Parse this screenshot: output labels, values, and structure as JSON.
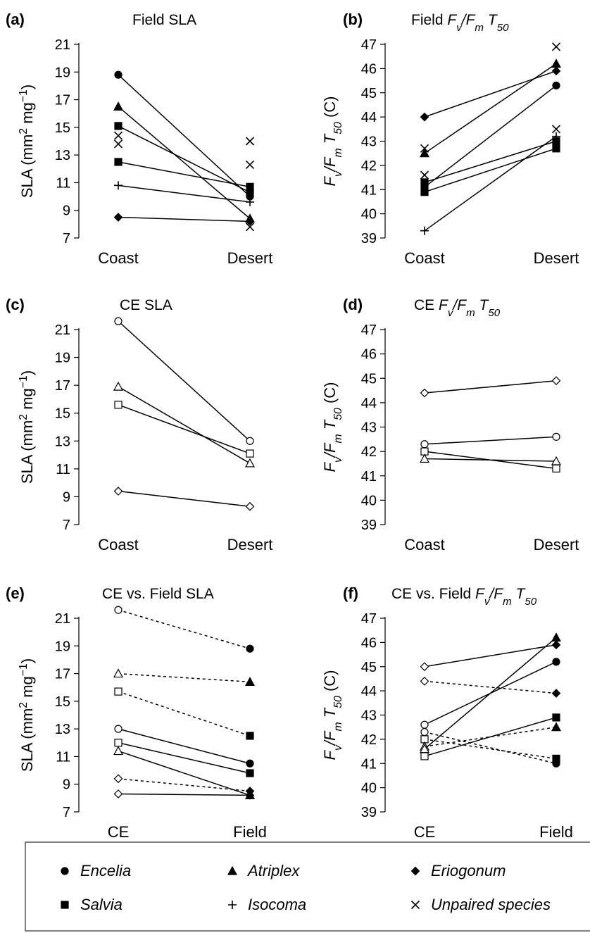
{
  "chart_data": [
    {
      "panel": "(a)",
      "title": "Field SLA",
      "type": "line",
      "categories": [
        "Coast",
        "Desert"
      ],
      "ylabel": "SLA (mm² mg⁻¹)",
      "ylim": [
        7,
        21
      ],
      "yticks": [
        7,
        9,
        11,
        13,
        15,
        17,
        19,
        21
      ],
      "series": [
        {
          "name": "Encelia",
          "marker": "circle",
          "filled": true,
          "style": "solid",
          "values": [
            18.8,
            10.0
          ]
        },
        {
          "name": "Atriplex",
          "marker": "triangle",
          "filled": true,
          "style": "solid",
          "values": [
            16.5,
            8.4
          ]
        },
        {
          "name": "Salvia",
          "marker": "square",
          "filled": true,
          "style": "solid",
          "values": [
            15.1,
            10.3
          ]
        },
        {
          "name": "Salvia",
          "marker": "square",
          "filled": true,
          "style": "solid",
          "values": [
            12.5,
            10.7
          ]
        },
        {
          "name": "Isocoma",
          "marker": "plus",
          "filled": true,
          "style": "solid",
          "values": [
            10.8,
            9.6
          ]
        },
        {
          "name": "Eriogonum",
          "marker": "diamond",
          "filled": true,
          "style": "solid",
          "values": [
            8.5,
            8.2
          ]
        },
        {
          "name": "Unpaired species",
          "marker": "x",
          "filled": true,
          "style": "none",
          "values": [
            14.4,
            14.0
          ]
        },
        {
          "name": "Unpaired species",
          "marker": "x",
          "filled": true,
          "style": "none",
          "values": [
            13.8,
            12.3
          ]
        },
        {
          "name": "Unpaired species",
          "marker": "x",
          "filled": true,
          "style": "none",
          "values": [
            null,
            7.8
          ]
        }
      ]
    },
    {
      "panel": "(b)",
      "title": "Field Fv/Fm T50",
      "type": "line",
      "categories": [
        "Coast",
        "Desert"
      ],
      "ylabel": "Fv/Fm T50 (C)",
      "ylim": [
        39,
        47
      ],
      "yticks": [
        39,
        40,
        41,
        42,
        43,
        44,
        45,
        46,
        47
      ],
      "series": [
        {
          "name": "Eriogonum",
          "marker": "diamond",
          "filled": true,
          "style": "solid",
          "values": [
            44.0,
            45.9
          ]
        },
        {
          "name": "Atriplex",
          "marker": "triangle",
          "filled": true,
          "style": "solid",
          "values": [
            42.5,
            46.2
          ]
        },
        {
          "name": "Encelia",
          "marker": "circle",
          "filled": true,
          "style": "solid",
          "values": [
            41.1,
            45.3
          ]
        },
        {
          "name": "Salvia",
          "marker": "square",
          "filled": true,
          "style": "solid",
          "values": [
            40.9,
            42.7
          ]
        },
        {
          "name": "Salvia",
          "marker": "square",
          "filled": true,
          "style": "solid",
          "values": [
            41.3,
            43.0
          ]
        },
        {
          "name": "Isocoma",
          "marker": "plus",
          "filled": true,
          "style": "solid",
          "values": [
            39.3,
            43.2
          ]
        },
        {
          "name": "Unpaired species",
          "marker": "x",
          "filled": true,
          "style": "none",
          "values": [
            42.7,
            46.9
          ]
        },
        {
          "name": "Unpaired species",
          "marker": "x",
          "filled": true,
          "style": "none",
          "values": [
            41.6,
            43.5
          ]
        }
      ]
    },
    {
      "panel": "(c)",
      "title": "CE SLA",
      "type": "line",
      "categories": [
        "Coast",
        "Desert"
      ],
      "ylabel": "SLA (mm² mg⁻¹)",
      "ylim": [
        7,
        21
      ],
      "yticks": [
        7,
        9,
        11,
        13,
        15,
        17,
        19,
        21
      ],
      "series": [
        {
          "name": "Encelia",
          "marker": "circle",
          "filled": false,
          "style": "solid",
          "values": [
            21.6,
            13.0
          ]
        },
        {
          "name": "Atriplex",
          "marker": "triangle",
          "filled": false,
          "style": "solid",
          "values": [
            16.9,
            11.4
          ]
        },
        {
          "name": "Salvia",
          "marker": "square",
          "filled": false,
          "style": "solid",
          "values": [
            15.6,
            12.1
          ]
        },
        {
          "name": "Eriogonum",
          "marker": "diamond",
          "filled": false,
          "style": "solid",
          "values": [
            9.4,
            8.3
          ]
        }
      ]
    },
    {
      "panel": "(d)",
      "title": "CE Fv/Fm T50",
      "type": "line",
      "categories": [
        "Coast",
        "Desert"
      ],
      "ylabel": "Fv/Fm T50 (C)",
      "ylim": [
        39,
        47
      ],
      "yticks": [
        39,
        40,
        41,
        42,
        43,
        44,
        45,
        46,
        47
      ],
      "series": [
        {
          "name": "Eriogonum",
          "marker": "diamond",
          "filled": false,
          "style": "solid",
          "values": [
            44.4,
            44.9
          ]
        },
        {
          "name": "Encelia",
          "marker": "circle",
          "filled": false,
          "style": "solid",
          "values": [
            42.3,
            42.6
          ]
        },
        {
          "name": "Salvia",
          "marker": "square",
          "filled": false,
          "style": "solid",
          "values": [
            42.0,
            41.3
          ]
        },
        {
          "name": "Atriplex",
          "marker": "triangle",
          "filled": false,
          "style": "solid",
          "values": [
            41.7,
            41.6
          ]
        }
      ]
    },
    {
      "panel": "(e)",
      "title": "CE vs. Field SLA",
      "type": "line",
      "categories": [
        "CE",
        "Field"
      ],
      "ylabel": "SLA (mm² mg⁻¹)",
      "ylim": [
        7,
        21
      ],
      "yticks": [
        7,
        9,
        11,
        13,
        15,
        17,
        19,
        21
      ],
      "series": [
        {
          "name": "Encelia",
          "marker": "circle",
          "style": "dashed",
          "values": [
            21.6,
            18.8
          ]
        },
        {
          "name": "Atriplex",
          "marker": "triangle",
          "style": "dashed",
          "values": [
            17.0,
            16.4
          ]
        },
        {
          "name": "Salvia",
          "marker": "square",
          "style": "dashed",
          "values": [
            15.7,
            12.5
          ]
        },
        {
          "name": "Encelia",
          "marker": "circle",
          "style": "solid",
          "values": [
            13.0,
            10.5
          ]
        },
        {
          "name": "Salvia",
          "marker": "square",
          "style": "solid",
          "values": [
            12.0,
            9.8
          ]
        },
        {
          "name": "Atriplex",
          "marker": "triangle",
          "style": "solid",
          "values": [
            11.4,
            8.2
          ]
        },
        {
          "name": "Eriogonum",
          "marker": "diamond",
          "style": "dashed",
          "values": [
            9.4,
            8.5
          ]
        },
        {
          "name": "Eriogonum",
          "marker": "diamond",
          "style": "solid",
          "values": [
            8.3,
            8.2
          ]
        }
      ]
    },
    {
      "panel": "(f)",
      "title": "CE vs. Field Fv/Fm T50",
      "type": "line",
      "categories": [
        "CE",
        "Field"
      ],
      "ylabel": "Fv/Fm T50 (C)",
      "ylim": [
        39,
        47
      ],
      "yticks": [
        39,
        40,
        41,
        42,
        43,
        44,
        45,
        46,
        47
      ],
      "series": [
        {
          "name": "Eriogonum",
          "marker": "diamond",
          "style": "solid",
          "values": [
            45.0,
            45.9
          ]
        },
        {
          "name": "Eriogonum",
          "marker": "diamond",
          "style": "dashed",
          "values": [
            44.4,
            43.9
          ]
        },
        {
          "name": "Encelia",
          "marker": "circle",
          "style": "solid",
          "values": [
            42.6,
            45.2
          ]
        },
        {
          "name": "Encelia",
          "marker": "circle",
          "style": "dashed",
          "values": [
            42.3,
            41.0
          ]
        },
        {
          "name": "Salvia",
          "marker": "square",
          "style": "dashed",
          "values": [
            42.0,
            41.2
          ]
        },
        {
          "name": "Atriplex",
          "marker": "triangle",
          "style": "dashed",
          "values": [
            41.7,
            42.5
          ]
        },
        {
          "name": "Salvia",
          "marker": "square",
          "style": "solid",
          "values": [
            41.3,
            42.9
          ]
        },
        {
          "name": "Atriplex",
          "marker": "triangle",
          "style": "solid",
          "values": [
            41.6,
            46.2
          ]
        }
      ]
    }
  ],
  "legend": {
    "items": [
      {
        "label": "Encelia",
        "marker": "circle"
      },
      {
        "label": "Atriplex",
        "marker": "triangle"
      },
      {
        "label": "Eriogonum",
        "marker": "diamond"
      },
      {
        "label": "Salvia",
        "marker": "square"
      },
      {
        "label": "Isocoma",
        "marker": "plus"
      },
      {
        "label": "Unpaired species",
        "marker": "x"
      }
    ]
  }
}
